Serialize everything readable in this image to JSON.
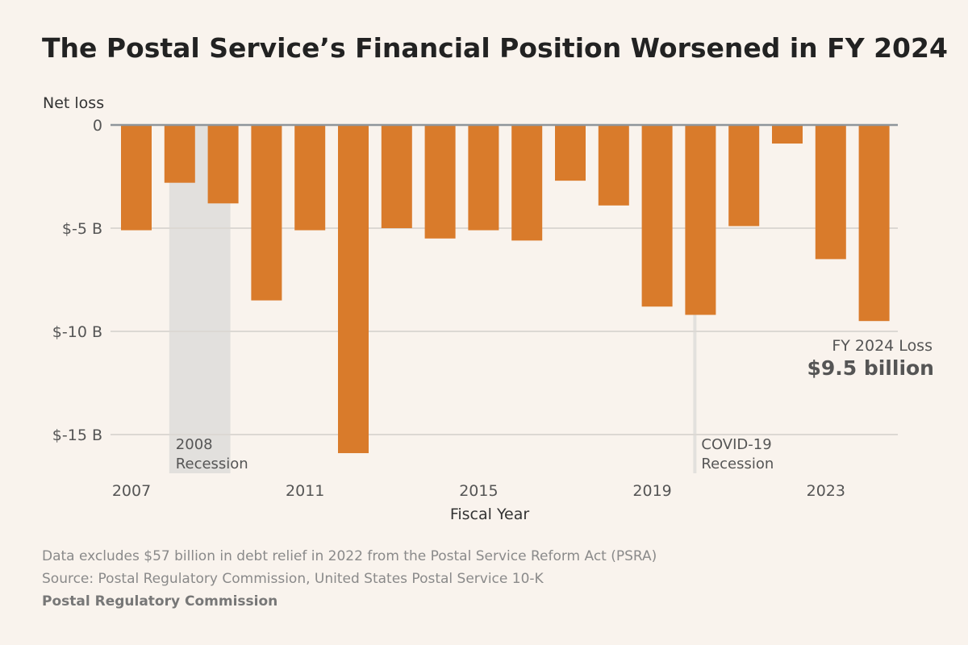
{
  "title": "The Postal Service’s Financial Position Worsened in FY 2024",
  "chart_data": {
    "type": "bar",
    "title": "The Postal Service’s Financial Position Worsened in FY 2024",
    "ylabel": "Net loss",
    "xlabel": "Fiscal Year",
    "categories": [
      "2007",
      "2008",
      "2009",
      "2010",
      "2011",
      "2012",
      "2013",
      "2014",
      "2015",
      "2016",
      "2017",
      "2018",
      "2019",
      "2020",
      "2021",
      "2022",
      "2023",
      "2024"
    ],
    "values": [
      -5.1,
      -2.8,
      -3.8,
      -8.5,
      -5.1,
      -15.9,
      -5.0,
      -5.5,
      -5.1,
      -5.6,
      -2.7,
      -3.9,
      -8.8,
      -9.2,
      -4.9,
      -0.9,
      -6.5,
      -9.5
    ],
    "ylim": [
      -17,
      0
    ],
    "yticks": [
      0,
      -5,
      -10,
      -15
    ],
    "ytick_labels": [
      "0",
      "$-5 B",
      "$-10 B",
      "$-15 B"
    ],
    "xtick_labels": [
      "2007",
      "2011",
      "2015",
      "2019",
      "2023"
    ],
    "grid": true,
    "bar_color": "#d97b2b",
    "shaded_regions": [
      {
        "label_line1": "2008",
        "label_line2": "Recession",
        "from": "2008",
        "to": "2009",
        "type": "band"
      },
      {
        "label_line1": "COVID-19",
        "label_line2": "Recession",
        "at": "2020",
        "type": "line"
      }
    ],
    "annotation": {
      "line1": "FY 2024 Loss",
      "line2": "$9.5 billion",
      "target": "2024"
    }
  },
  "footnotes": {
    "note": "Data excludes $57 billion in debt relief in 2022 from the Postal Service Reform Act (PSRA)",
    "source": "Source: Postal Regulatory Commission, United States Postal Service 10-K",
    "credit": "Postal Regulatory Commission"
  }
}
